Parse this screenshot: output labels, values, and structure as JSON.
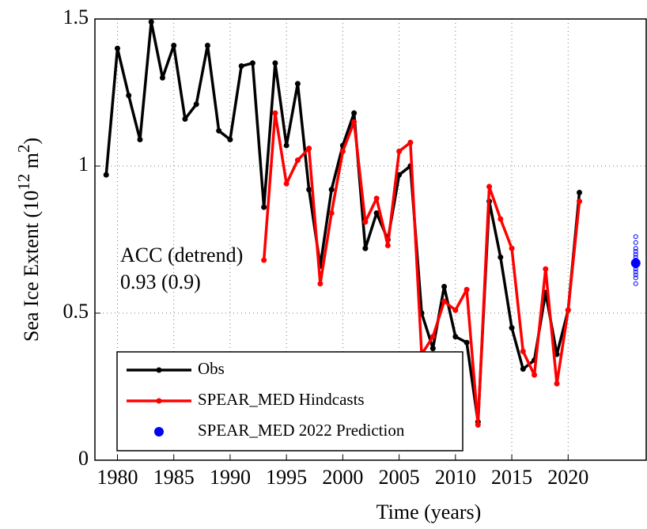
{
  "chart_data": {
    "type": "line",
    "xlabel": "Time (years)",
    "ylabel_parts": [
      "Sea Ice Extent (10",
      "12",
      " m",
      "2",
      ")"
    ],
    "annotation_lines": [
      "ACC (detrend)",
      "0.93 (0.9)"
    ],
    "xlim": [
      1978,
      2027
    ],
    "ylim": [
      0,
      1.5
    ],
    "xticks": [
      1980,
      1985,
      1990,
      1995,
      2000,
      2005,
      2010,
      2015,
      2020
    ],
    "yticks": [
      0,
      0.5,
      1,
      1.5
    ],
    "grid": true,
    "series": [
      {
        "name": "Obs",
        "color": "#000000",
        "x": [
          1979,
          1980,
          1981,
          1982,
          1983,
          1984,
          1985,
          1986,
          1987,
          1988,
          1989,
          1990,
          1991,
          1992,
          1993,
          1994,
          1995,
          1996,
          1997,
          1998,
          1999,
          2000,
          2001,
          2002,
          2003,
          2004,
          2005,
          2006,
          2007,
          2008,
          2009,
          2010,
          2011,
          2012,
          2013,
          2014,
          2015,
          2016,
          2017,
          2018,
          2019,
          2020,
          2021
        ],
        "values": [
          0.97,
          1.4,
          1.24,
          1.09,
          1.49,
          1.3,
          1.41,
          1.16,
          1.21,
          1.41,
          1.12,
          1.09,
          1.34,
          1.35,
          0.86,
          1.35,
          1.07,
          1.28,
          0.92,
          0.66,
          0.92,
          1.07,
          1.18,
          0.72,
          0.84,
          0.75,
          0.97,
          1.0,
          0.5,
          0.38,
          0.59,
          0.42,
          0.4,
          0.13,
          0.88,
          0.69,
          0.45,
          0.31,
          0.34,
          0.57,
          0.36,
          0.51,
          0.91
        ]
      },
      {
        "name": "SPEAR_MED Hindcasts",
        "color": "#ff0000",
        "x": [
          1993,
          1994,
          1995,
          1996,
          1997,
          1998,
          1999,
          2000,
          2001,
          2002,
          2003,
          2004,
          2005,
          2006,
          2007,
          2008,
          2009,
          2010,
          2011,
          2012,
          2013,
          2014,
          2015,
          2016,
          2017,
          2018,
          2019,
          2020,
          2021
        ],
        "values": [
          0.68,
          1.18,
          0.94,
          1.02,
          1.06,
          0.6,
          0.84,
          1.05,
          1.15,
          0.81,
          0.89,
          0.73,
          1.05,
          1.08,
          0.36,
          0.42,
          0.54,
          0.51,
          0.58,
          0.12,
          0.93,
          0.82,
          0.72,
          0.37,
          0.29,
          0.65,
          0.26,
          0.51,
          0.88
        ]
      },
      {
        "name": "SPEAR_MED 2022 Prediction",
        "color": "#0000ff",
        "x": [
          2026
        ],
        "values": [
          0.67
        ],
        "ensemble": [
          0.6,
          0.62,
          0.63,
          0.64,
          0.65,
          0.66,
          0.66,
          0.67,
          0.68,
          0.68,
          0.69,
          0.7,
          0.71,
          0.72,
          0.74,
          0.76
        ]
      }
    ]
  }
}
